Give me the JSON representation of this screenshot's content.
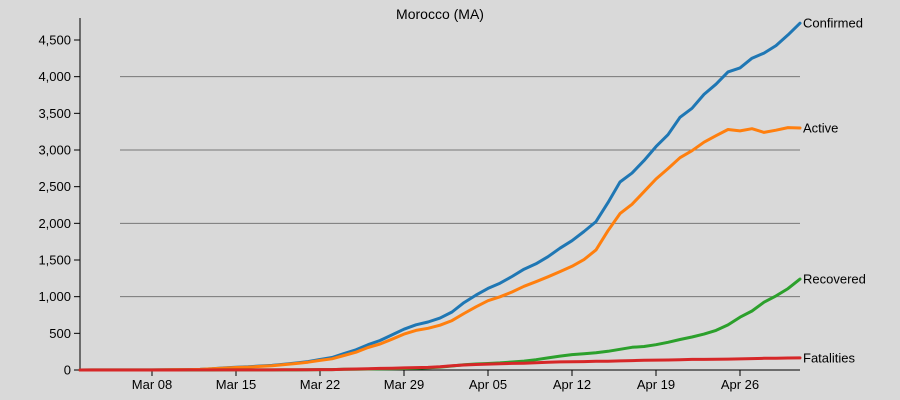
{
  "chart_data": {
    "type": "line",
    "title": "Morocco (MA)",
    "xlabel": "",
    "ylabel": "",
    "x_ticks": [
      "Mar 08",
      "Mar 15",
      "Mar 22",
      "Mar 29",
      "Apr 05",
      "Apr 12",
      "Apr 19",
      "Apr 26"
    ],
    "x_tick_index": [
      6,
      13,
      20,
      27,
      34,
      41,
      48,
      55
    ],
    "y_ticks": [
      "0",
      "500",
      "1,000",
      "1,500",
      "2,000",
      "2,500",
      "3,000",
      "3,500",
      "4,000",
      "4,500"
    ],
    "ylim": [
      0,
      4800
    ],
    "grid": "horizontal at 1,000 / 2,000 / 3,000 / 4,000",
    "legend": "series labels at right end of each line",
    "x_start": "Mar 02",
    "x_end": "May 02",
    "series": [
      {
        "name": "Confirmed",
        "color": "#1f77b4",
        "values": [
          0,
          1,
          1,
          2,
          2,
          2,
          2,
          3,
          5,
          6,
          8,
          17,
          28,
          37,
          44,
          54,
          63,
          79,
          96,
          115,
          143,
          170,
          225,
          275,
          345,
          402,
          479,
          556,
          617,
          654,
          708,
          791,
          919,
          1021,
          1113,
          1184,
          1275,
          1374,
          1448,
          1545,
          1661,
          1763,
          1888,
          2024,
          2283,
          2564,
          2685,
          2855,
          3046,
          3209,
          3446,
          3568,
          3758,
          3897,
          4065,
          4120,
          4252,
          4321,
          4423,
          4569,
          4729
        ]
      },
      {
        "name": "Active",
        "color": "#ff7f0e",
        "values": [
          0,
          1,
          1,
          2,
          2,
          2,
          2,
          3,
          5,
          6,
          8,
          16,
          26,
          34,
          40,
          49,
          58,
          73,
          88,
          106,
          131,
          153,
          198,
          243,
          307,
          355,
          420,
          490,
          540,
          568,
          611,
          673,
          770,
          862,
          945,
          998,
          1063,
          1141,
          1204,
          1271,
          1342,
          1414,
          1506,
          1638,
          1900,
          2133,
          2260,
          2431,
          2605,
          2746,
          2895,
          2990,
          3107,
          3195,
          3280,
          3260,
          3290,
          3240,
          3270,
          3305,
          3300
        ]
      },
      {
        "name": "Recovered",
        "color": "#2ca02c",
        "values": [
          0,
          0,
          0,
          0,
          0,
          0,
          0,
          0,
          0,
          0,
          0,
          0,
          1,
          1,
          1,
          1,
          1,
          1,
          2,
          3,
          5,
          6,
          10,
          11,
          14,
          15,
          18,
          20,
          25,
          31,
          40,
          55,
          72,
          82,
          88,
          97,
          109,
          122,
          140,
          165,
          190,
          210,
          222,
          235,
          255,
          282,
          310,
          320,
          345,
          378,
          416,
          450,
          490,
          540,
          615,
          720,
          805,
          925,
          1010,
          1110,
          1240
        ]
      },
      {
        "name": "Fatalities",
        "color": "#d62728",
        "values": [
          0,
          0,
          0,
          0,
          0,
          0,
          0,
          0,
          0,
          1,
          1,
          1,
          1,
          1,
          2,
          2,
          2,
          3,
          3,
          4,
          5,
          6,
          10,
          13,
          16,
          22,
          25,
          28,
          33,
          36,
          44,
          58,
          68,
          75,
          80,
          85,
          90,
          93,
          98,
          105,
          110,
          113,
          115,
          118,
          120,
          124,
          128,
          132,
          135,
          137,
          141,
          144,
          145,
          147,
          149,
          152,
          155,
          159,
          161,
          163,
          165
        ]
      }
    ]
  }
}
